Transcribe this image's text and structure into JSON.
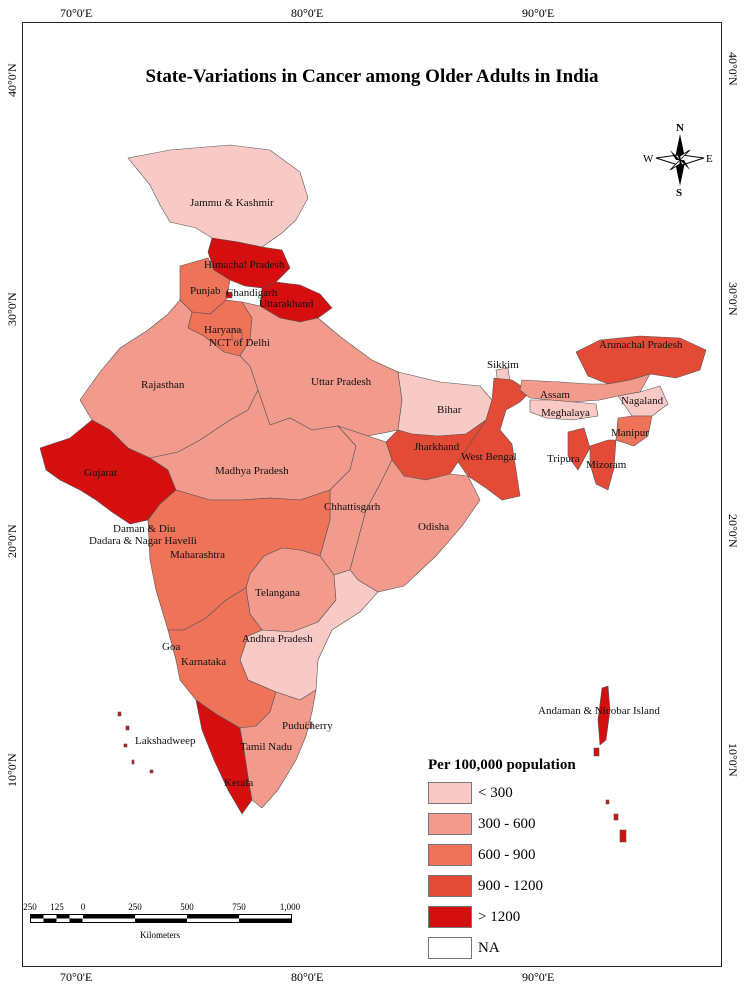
{
  "title": "State-Variations in Cancer among Older Adults in India",
  "grid": {
    "top_ticks": [
      "70°0'E",
      "80°0'E",
      "90°0'E"
    ],
    "bottom_ticks": [
      "70°0'E",
      "80°0'E",
      "90°0'E"
    ],
    "left_ticks": [
      "40°0'N",
      "30°0'N",
      "20°0'N",
      "10°0'N"
    ],
    "right_ticks": [
      "40°0'N",
      "30°0'N",
      "20°0'N",
      "10°0'N"
    ]
  },
  "compass": {
    "n": "N",
    "s": "S",
    "e": "E",
    "w": "W"
  },
  "legend": {
    "title": "Per 100,000 population",
    "classes": [
      {
        "label": "< 300",
        "color": "#f9c9c6"
      },
      {
        "label": "300 - 600",
        "color": "#f29a8c"
      },
      {
        "label": "600 - 900",
        "color": "#ee7359"
      },
      {
        "label": "900 - 1200",
        "color": "#e44b37"
      },
      {
        "label": "> 1200",
        "color": "#d50f0f"
      },
      {
        "label": "NA",
        "color": "#ffffff"
      }
    ]
  },
  "states": [
    {
      "name": "Jammu & Kashmir",
      "class": "< 300"
    },
    {
      "name": "Himachal Pradesh",
      "class": "> 1200"
    },
    {
      "name": "Punjab",
      "class": "600 - 900"
    },
    {
      "name": "Chandigarh",
      "class": "> 1200"
    },
    {
      "name": "Uttarakhand",
      "class": "> 1200"
    },
    {
      "name": "Haryana",
      "class": "600 - 900"
    },
    {
      "name": "NCT of Delhi",
      "class": "600 - 900"
    },
    {
      "name": "Rajasthan",
      "class": "300 - 600"
    },
    {
      "name": "Uttar Pradesh",
      "class": "300 - 600"
    },
    {
      "name": "Bihar",
      "class": "< 300"
    },
    {
      "name": "Sikkim",
      "class": "< 300"
    },
    {
      "name": "Arunachal Pradesh",
      "class": "900 - 1200"
    },
    {
      "name": "Assam",
      "class": "300 - 600"
    },
    {
      "name": "Nagaland",
      "class": "< 300"
    },
    {
      "name": "Meghalaya",
      "class": "< 300"
    },
    {
      "name": "Manipur",
      "class": "600 - 900"
    },
    {
      "name": "Tripura",
      "class": "900 - 1200"
    },
    {
      "name": "Mizoram",
      "class": "900 - 1200"
    },
    {
      "name": "Jharkhand",
      "class": "900 - 1200"
    },
    {
      "name": "West Bengal",
      "class": "900 - 1200"
    },
    {
      "name": "Gujarat",
      "class": "> 1200"
    },
    {
      "name": "Madhya Pradesh",
      "class": "300 - 600"
    },
    {
      "name": "Chhattisgarh",
      "class": "300 - 600"
    },
    {
      "name": "Odisha",
      "class": "300 - 600"
    },
    {
      "name": "Daman & Diu",
      "class": "> 1200"
    },
    {
      "name": "Dadara & Nagar Havelli",
      "class": "> 1200"
    },
    {
      "name": "Maharashtra",
      "class": "600 - 900"
    },
    {
      "name": "Telangana",
      "class": "300 - 600"
    },
    {
      "name": "Andhra Pradesh",
      "class": "< 300"
    },
    {
      "name": "Goa",
      "class": "600 - 900"
    },
    {
      "name": "Karnataka",
      "class": "600 - 900"
    },
    {
      "name": "Puducherry",
      "class": "300 - 600"
    },
    {
      "name": "Lakshadweep",
      "class": "> 1200"
    },
    {
      "name": "Tamil Nadu",
      "class": "300 - 600"
    },
    {
      "name": "Kerala",
      "class": "> 1200"
    },
    {
      "name": "Andaman & Nicobar Island",
      "class": "> 1200"
    }
  ],
  "scalebar": {
    "labels": [
      "250",
      "125",
      "0",
      "250",
      "500",
      "750",
      "1,000"
    ],
    "unit": "Kilometers"
  }
}
